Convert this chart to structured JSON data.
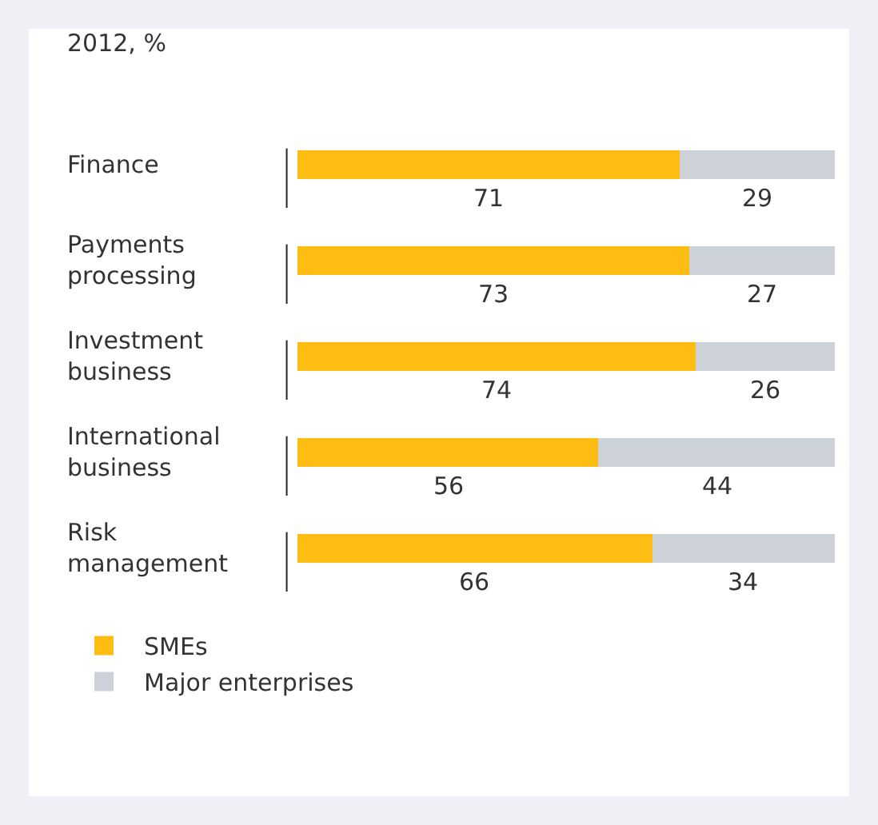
{
  "chart_data": {
    "type": "bar",
    "orientation": "horizontal",
    "stacked": true,
    "title": "2012, %",
    "categories": [
      "Finance",
      "Payments processing",
      "Investment business",
      "International business",
      "Risk management"
    ],
    "series": [
      {
        "name": "SMEs",
        "color": "#fdbd13",
        "values": [
          71,
          73,
          74,
          56,
          66
        ]
      },
      {
        "name": "Major enterprises",
        "color": "#cdd1d8",
        "values": [
          29,
          27,
          26,
          44,
          34
        ]
      }
    ],
    "data_labels": true,
    "legend": "bottom"
  }
}
